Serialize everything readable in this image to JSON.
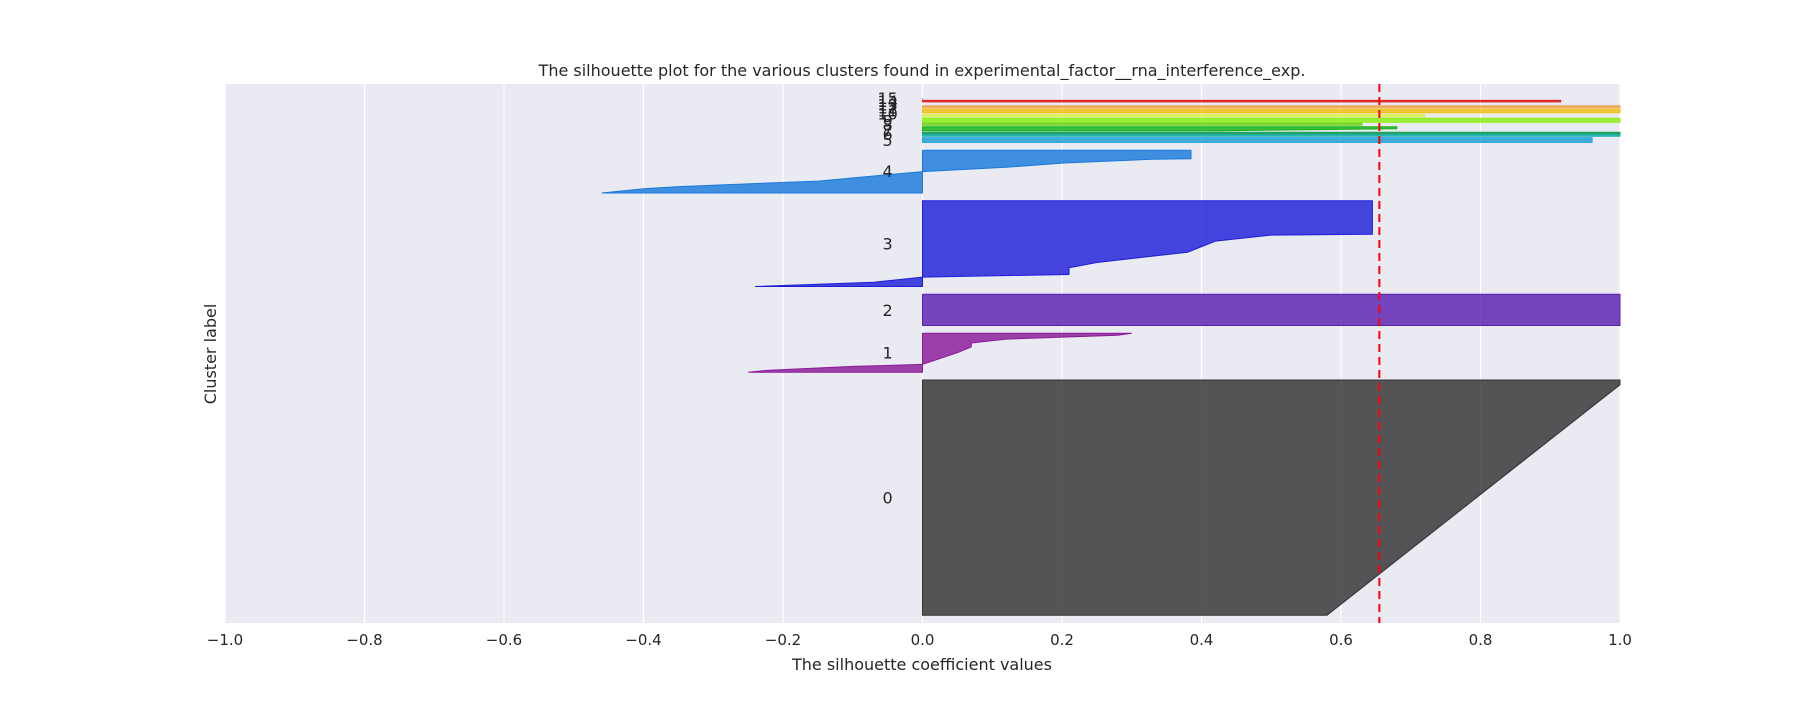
{
  "chart_data": {
    "type": "silhouette",
    "title": "The silhouette plot for the various clusters found in experimental_factor__rna_interference_exp.",
    "xlabel": "The silhouette coefficient values",
    "ylabel": "Cluster label",
    "xlim": [
      -1.0,
      1.0
    ],
    "x_ticks": [
      -1.0,
      -0.8,
      -0.6,
      -0.4,
      -0.2,
      0.0,
      0.2,
      0.4,
      0.6,
      0.8,
      1.0
    ],
    "x_tick_labels": [
      "−1.0",
      "−0.8",
      "−0.6",
      "−0.4",
      "−0.2",
      "0.0",
      "0.2",
      "0.4",
      "0.6",
      "0.8",
      "1.0"
    ],
    "grid": true,
    "average_silhouette_score": 0.655,
    "clusters": [
      {
        "label": "0",
        "y_range": [
          10,
          312
        ],
        "color": "#333333",
        "profile": [
          [
            0,
            1.0
          ],
          [
            0.02,
            1.0
          ],
          [
            1.0,
            0.58
          ]
        ]
      },
      {
        "label": "1",
        "y_range": [
          322,
          372
        ],
        "color": "#8b1a9a",
        "profile": [
          [
            0,
            0.3
          ],
          [
            0.05,
            0.28
          ],
          [
            0.15,
            0.12
          ],
          [
            0.25,
            0.07
          ],
          [
            0.35,
            0.07
          ],
          [
            0.5,
            0.05
          ],
          [
            0.8,
            0.0
          ],
          [
            0.85,
            -0.1
          ],
          [
            0.95,
            -0.22
          ],
          [
            1.0,
            -0.25
          ]
        ]
      },
      {
        "label": "2",
        "y_range": [
          382,
          422
        ],
        "color": "#5a20b0",
        "profile": [
          [
            0,
            1.0
          ],
          [
            1.0,
            1.0
          ]
        ]
      },
      {
        "label": "3",
        "y_range": [
          432,
          542
        ],
        "color": "#1e1ed9",
        "profile": [
          [
            0,
            0.645
          ],
          [
            0.39,
            0.645
          ],
          [
            0.4,
            0.5
          ],
          [
            0.47,
            0.42
          ],
          [
            0.6,
            0.38
          ],
          [
            0.72,
            0.25
          ],
          [
            0.78,
            0.21
          ],
          [
            0.86,
            0.21
          ],
          [
            0.89,
            0.0
          ],
          [
            0.95,
            -0.07
          ],
          [
            1.0,
            -0.24
          ]
        ]
      },
      {
        "label": "4",
        "y_range": [
          552,
          607
        ],
        "color": "#1a7adb",
        "profile": [
          [
            0,
            0.385
          ],
          [
            0.2,
            0.385
          ],
          [
            0.21,
            0.33
          ],
          [
            0.3,
            0.2
          ],
          [
            0.4,
            0.12
          ],
          [
            0.5,
            0.0
          ],
          [
            0.72,
            -0.15
          ],
          [
            0.85,
            -0.35
          ],
          [
            0.9,
            -0.4
          ],
          [
            1.0,
            -0.46
          ]
        ]
      },
      {
        "label": "5",
        "y_range": [
          617,
          623
        ],
        "color": "#1aa0d6",
        "profile": [
          [
            0,
            0.96
          ],
          [
            0.4,
            0.96
          ],
          [
            1.0,
            0.96
          ]
        ]
      },
      {
        "label": "6",
        "y_range": [
          625,
          627
        ],
        "color": "#0fafaf",
        "profile": [
          [
            0,
            1.0
          ],
          [
            1.0,
            1.0
          ]
        ]
      },
      {
        "label": "7",
        "y_range": [
          628,
          630
        ],
        "color": "#1aa05a",
        "profile": [
          [
            0,
            1.0
          ],
          [
            1.0,
            1.0
          ]
        ]
      },
      {
        "label": "8",
        "y_range": [
          632,
          637
        ],
        "color": "#14b414",
        "profile": [
          [
            0,
            0.68
          ],
          [
            0.5,
            0.68
          ],
          [
            1.0,
            0.43
          ]
        ]
      },
      {
        "label": "9",
        "y_range": [
          639,
          642
        ],
        "color": "#6ed21e",
        "profile": [
          [
            0,
            0.63
          ],
          [
            1.0,
            0.63
          ]
        ]
      },
      {
        "label": "10",
        "y_range": [
          643,
          648
        ],
        "color": "#8cf014",
        "profile": [
          [
            0,
            1.0
          ],
          [
            1.0,
            1.0
          ]
        ]
      },
      {
        "label": "11",
        "y_range": [
          650,
          653
        ],
        "color": "#dcf050",
        "profile": [
          [
            0,
            0.72
          ],
          [
            1.0,
            0.72
          ]
        ]
      },
      {
        "label": "12",
        "y_range": [
          655,
          660
        ],
        "color": "#f0c014",
        "profile": [
          [
            0,
            1.0
          ],
          [
            1.0,
            1.0
          ]
        ]
      },
      {
        "label": "13",
        "y_range": [
          662,
          664
        ],
        "color": "#f0a050",
        "profile": [
          [
            0,
            1.0
          ],
          [
            1.0,
            1.0
          ]
        ]
      },
      {
        "label": "14",
        "y_range": [
          669,
          671
        ],
        "color": "#e01e1e",
        "profile": [
          [
            0,
            0.915
          ],
          [
            1.0,
            0.915
          ]
        ]
      },
      {
        "label": "15",
        "y_range": [
          673,
          674
        ],
        "color": "#e01e1e",
        "profile": [
          [
            0,
            0.0
          ],
          [
            1.0,
            0.0
          ]
        ]
      }
    ],
    "cluster_label_positions": {
      "0": 161,
      "1": 347,
      "2": 402,
      "3": 487,
      "4": 580,
      "5": 620,
      "6": 628,
      "7": 632,
      "8": 640,
      "9": 645,
      "10": 654,
      "11": 658,
      "12": 662,
      "13": 666,
      "14": 670,
      "15": 674
    },
    "ylim": [
      0,
      692
    ],
    "colors": {
      "background": "#ffffff",
      "plot_area": "#eaeaf2",
      "grid": "#ffffff",
      "average_line": "#ff0000",
      "text": "#262626"
    }
  }
}
